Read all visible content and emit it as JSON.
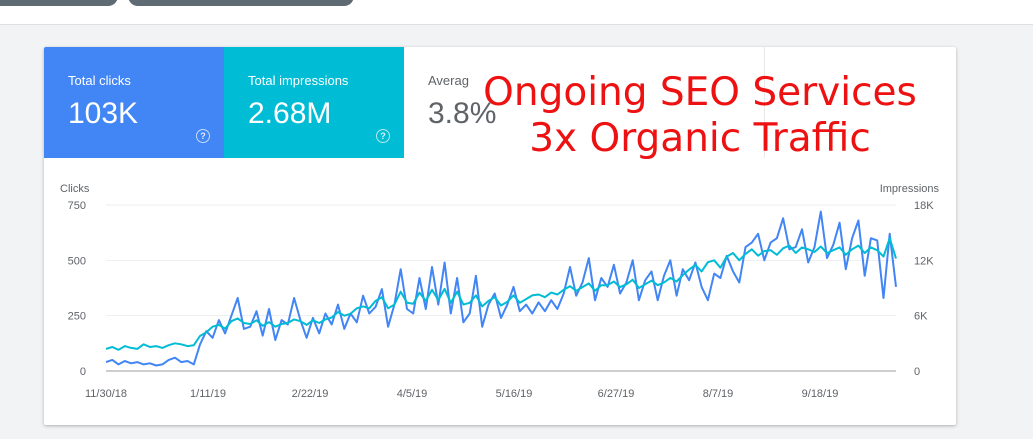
{
  "tiles": {
    "clicks": {
      "label": "Total clicks",
      "value": "103K"
    },
    "impressions": {
      "label": "Total impressions",
      "value": "2.68M"
    },
    "ctr": {
      "label": "Averag",
      "value": "3.8%"
    }
  },
  "overlay": {
    "line1": "Ongoing SEO Services",
    "line2": "3x Organic Traffic"
  },
  "colors": {
    "clicks": "#4285f4",
    "impressions": "#00bcd4",
    "overlay_text": "#ee1111"
  },
  "icons": {
    "help": "help-circle-icon"
  },
  "chart_data": {
    "type": "line",
    "title": "",
    "left_axis_label": "Clicks",
    "right_axis_label": "Impressions",
    "left_ylim": [
      0,
      750
    ],
    "left_ticks": [
      "0",
      "250",
      "500",
      "750"
    ],
    "right_ylim": [
      0,
      18000
    ],
    "right_ticks": [
      "0",
      "6K",
      "12K",
      "18K"
    ],
    "x_tick_labels": [
      "11/30/18",
      "1/11/19",
      "2/22/19",
      "4/5/19",
      "5/16/19",
      "6/27/19",
      "8/7/19",
      "9/18/19"
    ],
    "grid": true,
    "legend": "none",
    "series": [
      {
        "axis": "left",
        "color": "#4285f4",
        "values": [
          40,
          50,
          30,
          45,
          35,
          40,
          30,
          35,
          25,
          30,
          50,
          60,
          40,
          45,
          30,
          120,
          180,
          150,
          230,
          170,
          250,
          330,
          190,
          200,
          270,
          160,
          280,
          140,
          230,
          210,
          330,
          230,
          150,
          240,
          170,
          260,
          210,
          300,
          190,
          260,
          220,
          340,
          260,
          290,
          370,
          200,
          300,
          460,
          280,
          260,
          420,
          280,
          470,
          300,
          490,
          260,
          420,
          220,
          260,
          430,
          200,
          300,
          350,
          240,
          300,
          380,
          270,
          300,
          260,
          310,
          270,
          320,
          280,
          350,
          470,
          340,
          400,
          510,
          320,
          420,
          380,
          480,
          350,
          400,
          500,
          320,
          410,
          450,
          320,
          430,
          500,
          340,
          460,
          410,
          490,
          380,
          320,
          440,
          420,
          520,
          450,
          400,
          560,
          580,
          620,
          500,
          580,
          600,
          690,
          550,
          560,
          640,
          490,
          560,
          720,
          510,
          570,
          670,
          460,
          600,
          680,
          430,
          600,
          590,
          330,
          620,
          380
        ]
      },
      {
        "axis": "right",
        "color": "#00bcd4",
        "values": [
          2400,
          2600,
          2300,
          2700,
          2500,
          2400,
          2900,
          2600,
          2700,
          2500,
          2800,
          3000,
          2900,
          2700,
          2800,
          3800,
          4200,
          4800,
          5000,
          4600,
          5400,
          5700,
          5200,
          5100,
          5500,
          4900,
          5300,
          4800,
          5100,
          5200,
          5600,
          5400,
          5000,
          5500,
          5200,
          5600,
          5800,
          6400,
          6000,
          6200,
          6800,
          7000,
          6800,
          7600,
          8000,
          6800,
          7200,
          8600,
          7400,
          7300,
          8500,
          7600,
          8800,
          7700,
          8900,
          7400,
          8600,
          7200,
          7400,
          8200,
          7000,
          7600,
          8000,
          7100,
          7500,
          8200,
          7400,
          7800,
          8200,
          8300,
          8000,
          8500,
          8300,
          8800,
          9200,
          8700,
          9100,
          9500,
          8700,
          9300,
          9300,
          9700,
          9100,
          9400,
          9900,
          9000,
          9400,
          9800,
          9300,
          9600,
          10100,
          9700,
          10400,
          11000,
          11500,
          10800,
          11800,
          12000,
          11200,
          12400,
          12800,
          12000,
          12700,
          13200,
          12500,
          13000,
          13100,
          12600,
          13300,
          13600,
          12800,
          13400,
          13200,
          12900,
          13500,
          12800,
          13100,
          13400,
          12600,
          13200,
          13600,
          12800,
          13400,
          13100,
          12400,
          14400,
          12200
        ]
      }
    ]
  }
}
